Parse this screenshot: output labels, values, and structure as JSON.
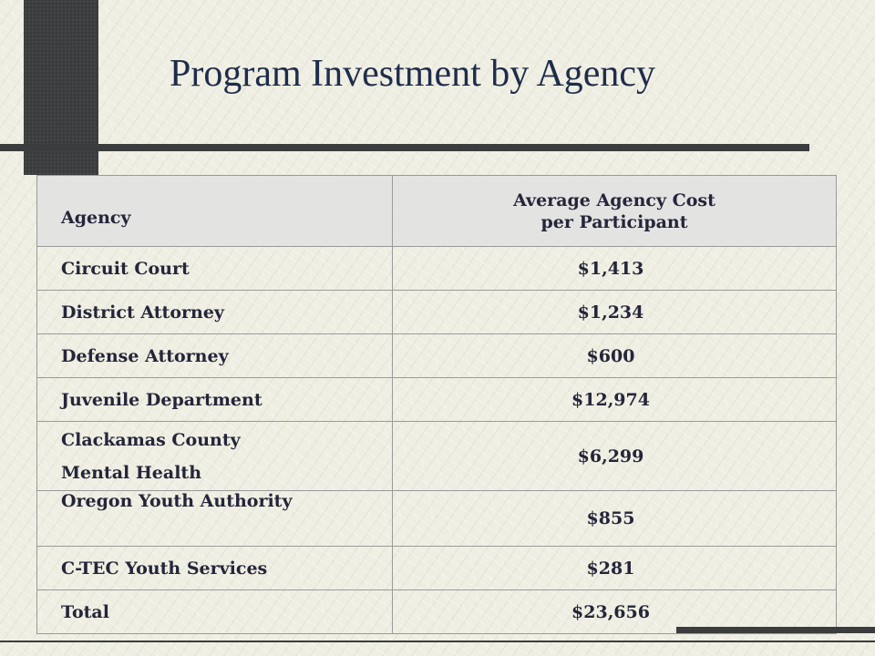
{
  "title": "Program Investment by Agency",
  "table": {
    "headers": {
      "agency": "Agency",
      "cost_line1": "Average Agency Cost",
      "cost_line2": "per Participant"
    },
    "rows": [
      {
        "agency": "Circuit Court",
        "cost": "$1,413"
      },
      {
        "agency": "District Attorney",
        "cost": "$1,234"
      },
      {
        "agency": "Defense Attorney",
        "cost": "$600"
      },
      {
        "agency": "Juvenile Department",
        "cost": "$12,974"
      },
      {
        "agency_line1": "Clackamas County",
        "agency_line2": "Mental Health",
        "cost": "$6,299"
      },
      {
        "agency": "Oregon Youth Authority",
        "cost": "$855"
      },
      {
        "agency": "C-TEC Youth Services",
        "cost": "$281"
      },
      {
        "agency": "Total",
        "cost": "$23,656"
      }
    ]
  },
  "colors": {
    "background": "#efeee2",
    "title": "#1e2d4a",
    "bars": "#3b3c3e",
    "header_fill": "#e2e1e2"
  }
}
